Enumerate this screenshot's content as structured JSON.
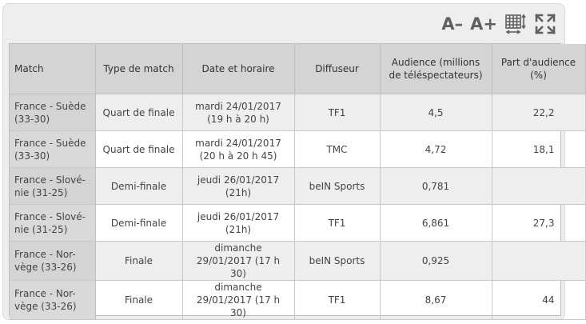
{
  "toolbar": {
    "decrease_font_label": "A–",
    "increase_font_label": "A+",
    "resize_columns_icon": "table-resize-icon",
    "fullscreen_icon": "fullscreen-icon"
  },
  "table": {
    "headers": [
      "Match",
      "Type de match",
      "Date et horaire",
      "Diffuseur",
      "Audience (millions de téléspectateurs)",
      "Part d'audience (%)"
    ],
    "rows": [
      [
        "France - Suède (33-30)",
        "Quart de finale",
        "mardi 24/01/2017 (19 h à 20 h)",
        "TF1",
        "4,5",
        "22,2"
      ],
      [
        "France - Suède (33-30)",
        "Quart de finale",
        "mardi 24/01/2017 (20 h à 20 h 45)",
        "TMC",
        "4,72",
        "18,1"
      ],
      [
        "France - Slové-nie (31-25)",
        "Demi-finale",
        "jeudi 26/01/2017 (21h)",
        "beIN Sports",
        "0,781",
        ""
      ],
      [
        "France - Slové-nie (31-25)",
        "Demi-finale",
        "jeudi 26/01/2017 (21h)",
        "TF1",
        "6,861",
        "27,3"
      ],
      [
        "France - Nor-vège (33-26)",
        "Finale",
        "dimanche 29/01/2017 (17 h 30)",
        "beIN Sports",
        "0,925",
        ""
      ],
      [
        "France - Nor-vège (33-26)",
        "Finale",
        "dimanche 29/01/2017 (17 h 30)",
        "TF1",
        "8,67",
        "44"
      ]
    ]
  }
}
